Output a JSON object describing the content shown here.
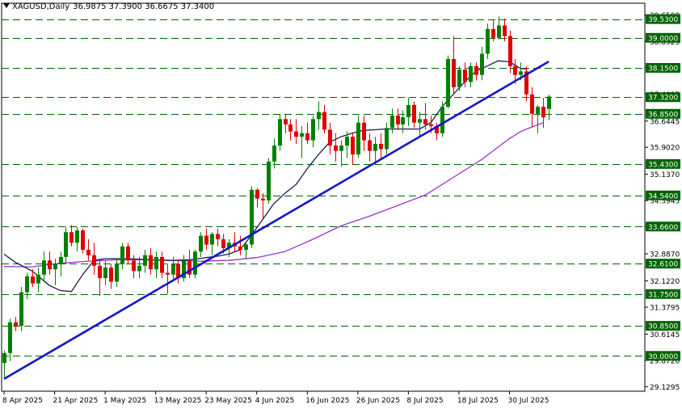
{
  "header": {
    "symbol": "XAGUSD,Daily",
    "ohlc": "36.9875 37.3900 36.6675 37.3400"
  },
  "chart_data": {
    "type": "candlestick",
    "ylim": [
      29.0,
      39.75
    ],
    "y_ticks": [
      "39.6500",
      "38.8925",
      "38.1550",
      "37.4025",
      "36.6445",
      "35.9020",
      "35.1370",
      "34.3945",
      "33.6520",
      "32.8870",
      "32.1220",
      "31.3795",
      "30.6145",
      "29.8720",
      "29.1295"
    ],
    "x_tick_labels": [
      {
        "label": "8 Apr 2025",
        "index": 0
      },
      {
        "label": "21 Apr 2025",
        "index": 9
      },
      {
        "label": "1 May 2025",
        "index": 18
      },
      {
        "label": "13 May 2025",
        "index": 27
      },
      {
        "label": "23 May 2025",
        "index": 36
      },
      {
        "label": "4 Jun 2025",
        "index": 45
      },
      {
        "label": "16 Jun 2025",
        "index": 54
      },
      {
        "label": "26 Jun 2025",
        "index": 63
      },
      {
        "label": "8 Jul 2025",
        "index": 72
      },
      {
        "label": "18 Jul 2025",
        "index": 81
      },
      {
        "label": "30 Jul 2025",
        "index": 90
      }
    ],
    "levels": [
      {
        "label": "39.5300",
        "value": 39.53
      },
      {
        "label": "39.0000",
        "value": 39.0
      },
      {
        "label": "38.1500",
        "value": 38.15
      },
      {
        "label": "37.3200",
        "value": 37.32
      },
      {
        "label": "36.8500",
        "value": 36.85
      },
      {
        "label": "35.4300",
        "value": 35.43
      },
      {
        "label": "34.5400",
        "value": 34.54
      },
      {
        "label": "33.6600",
        "value": 33.66
      },
      {
        "label": "32.6100",
        "value": 32.61
      },
      {
        "label": "31.7500",
        "value": 31.75
      },
      {
        "label": "30.8500",
        "value": 30.85
      },
      {
        "label": "30.0000",
        "value": 30.0
      }
    ],
    "trendline": {
      "start": {
        "index": 0,
        "value": 29.35
      },
      "end": {
        "index": 97,
        "value": 38.33
      }
    },
    "ma_fast": {
      "color": "#1a1a4e",
      "points": [
        [
          0,
          32.88
        ],
        [
          2,
          32.65
        ],
        [
          5,
          32.4
        ],
        [
          8,
          32.0
        ],
        [
          10,
          31.85
        ],
        [
          12,
          31.82
        ],
        [
          14,
          32.3
        ],
        [
          16,
          32.7
        ],
        [
          18,
          32.75
        ],
        [
          22,
          32.75
        ],
        [
          26,
          32.72
        ],
        [
          30,
          32.7
        ],
        [
          33,
          32.72
        ],
        [
          36,
          32.78
        ],
        [
          38,
          32.82
        ],
        [
          40,
          32.88
        ],
        [
          42,
          33.0
        ],
        [
          44,
          33.4
        ],
        [
          46,
          33.85
        ],
        [
          48,
          34.3
        ],
        [
          50,
          34.6
        ],
        [
          52,
          34.85
        ],
        [
          54,
          35.3
        ],
        [
          56,
          35.7
        ],
        [
          58,
          36.05
        ],
        [
          60,
          36.2
        ],
        [
          62,
          36.3
        ],
        [
          64,
          36.38
        ],
        [
          66,
          36.4
        ],
        [
          68,
          36.42
        ],
        [
          70,
          36.42
        ],
        [
          72,
          36.42
        ],
        [
          74,
          36.42
        ],
        [
          76,
          36.6
        ],
        [
          78,
          37.05
        ],
        [
          80,
          37.4
        ],
        [
          82,
          37.75
        ],
        [
          84,
          38.05
        ],
        [
          86,
          38.2
        ],
        [
          88,
          38.35
        ],
        [
          90,
          38.32
        ],
        [
          92,
          38.13
        ],
        [
          93,
          38.12
        ]
      ]
    },
    "ma_slow": {
      "color": "#9933cc",
      "points": [
        [
          0,
          32.53
        ],
        [
          5,
          32.52
        ],
        [
          10,
          32.62
        ],
        [
          15,
          32.68
        ],
        [
          20,
          32.72
        ],
        [
          25,
          32.72
        ],
        [
          30,
          32.7
        ],
        [
          35,
          32.68
        ],
        [
          40,
          32.7
        ],
        [
          45,
          32.78
        ],
        [
          50,
          32.95
        ],
        [
          55,
          33.3
        ],
        [
          60,
          33.68
        ],
        [
          65,
          33.95
        ],
        [
          70,
          34.25
        ],
        [
          75,
          34.55
        ],
        [
          80,
          35.05
        ],
        [
          85,
          35.55
        ],
        [
          90,
          36.15
        ],
        [
          92,
          36.35
        ],
        [
          94,
          36.48
        ],
        [
          96,
          36.6
        ]
      ]
    },
    "candles": [
      {
        "o": 29.8,
        "h": 30.15,
        "l": 29.35,
        "c": 30.08
      },
      {
        "o": 30.08,
        "h": 31.05,
        "l": 29.85,
        "c": 30.95
      },
      {
        "o": 30.95,
        "h": 31.1,
        "l": 30.7,
        "c": 30.85
      },
      {
        "o": 30.85,
        "h": 31.95,
        "l": 30.7,
        "c": 31.8
      },
      {
        "o": 31.8,
        "h": 32.35,
        "l": 31.6,
        "c": 32.25
      },
      {
        "o": 32.25,
        "h": 32.45,
        "l": 31.95,
        "c": 32.05
      },
      {
        "o": 32.05,
        "h": 32.5,
        "l": 31.8,
        "c": 32.3
      },
      {
        "o": 32.3,
        "h": 32.95,
        "l": 32.1,
        "c": 32.7
      },
      {
        "o": 32.7,
        "h": 32.95,
        "l": 32.3,
        "c": 32.45
      },
      {
        "o": 32.45,
        "h": 32.75,
        "l": 32.0,
        "c": 32.6
      },
      {
        "o": 32.6,
        "h": 32.95,
        "l": 32.25,
        "c": 32.8
      },
      {
        "o": 32.8,
        "h": 33.65,
        "l": 32.6,
        "c": 33.5
      },
      {
        "o": 33.5,
        "h": 33.7,
        "l": 33.1,
        "c": 33.2
      },
      {
        "o": 33.2,
        "h": 33.65,
        "l": 32.95,
        "c": 33.55
      },
      {
        "o": 33.55,
        "h": 33.6,
        "l": 32.9,
        "c": 33.0
      },
      {
        "o": 33.0,
        "h": 33.3,
        "l": 32.7,
        "c": 32.85
      },
      {
        "o": 32.85,
        "h": 33.2,
        "l": 32.3,
        "c": 32.55
      },
      {
        "o": 32.55,
        "h": 32.7,
        "l": 31.7,
        "c": 32.2
      },
      {
        "o": 32.2,
        "h": 32.7,
        "l": 32.0,
        "c": 32.5
      },
      {
        "o": 32.5,
        "h": 32.6,
        "l": 31.9,
        "c": 32.1
      },
      {
        "o": 32.1,
        "h": 32.75,
        "l": 31.95,
        "c": 32.6
      },
      {
        "o": 32.6,
        "h": 33.2,
        "l": 32.45,
        "c": 33.1
      },
      {
        "o": 33.1,
        "h": 33.2,
        "l": 32.6,
        "c": 32.7
      },
      {
        "o": 32.7,
        "h": 32.85,
        "l": 32.2,
        "c": 32.4
      },
      {
        "o": 32.4,
        "h": 32.8,
        "l": 32.2,
        "c": 32.55
      },
      {
        "o": 32.55,
        "h": 33.0,
        "l": 32.35,
        "c": 32.85
      },
      {
        "o": 32.85,
        "h": 33.05,
        "l": 32.3,
        "c": 32.45
      },
      {
        "o": 32.45,
        "h": 32.95,
        "l": 32.2,
        "c": 32.8
      },
      {
        "o": 32.8,
        "h": 32.95,
        "l": 32.2,
        "c": 32.35
      },
      {
        "o": 32.35,
        "h": 32.6,
        "l": 31.75,
        "c": 32.3
      },
      {
        "o": 32.3,
        "h": 32.8,
        "l": 32.1,
        "c": 32.6
      },
      {
        "o": 32.6,
        "h": 32.7,
        "l": 32.05,
        "c": 32.2
      },
      {
        "o": 32.2,
        "h": 32.85,
        "l": 32.1,
        "c": 32.7
      },
      {
        "o": 32.7,
        "h": 33.0,
        "l": 32.2,
        "c": 32.3
      },
      {
        "o": 32.3,
        "h": 33.0,
        "l": 32.2,
        "c": 32.95
      },
      {
        "o": 32.95,
        "h": 33.5,
        "l": 32.8,
        "c": 33.4
      },
      {
        "o": 33.4,
        "h": 33.6,
        "l": 33.0,
        "c": 33.15
      },
      {
        "o": 33.15,
        "h": 33.5,
        "l": 32.85,
        "c": 33.45
      },
      {
        "o": 33.45,
        "h": 33.6,
        "l": 33.1,
        "c": 33.3
      },
      {
        "o": 33.3,
        "h": 33.45,
        "l": 32.9,
        "c": 33.05
      },
      {
        "o": 33.05,
        "h": 33.3,
        "l": 32.8,
        "c": 33.2
      },
      {
        "o": 33.2,
        "h": 33.5,
        "l": 32.95,
        "c": 33.1
      },
      {
        "o": 33.1,
        "h": 33.4,
        "l": 32.85,
        "c": 33.0
      },
      {
        "o": 33.0,
        "h": 33.25,
        "l": 32.75,
        "c": 33.15
      },
      {
        "o": 33.15,
        "h": 34.8,
        "l": 33.05,
        "c": 34.7
      },
      {
        "o": 34.7,
        "h": 34.75,
        "l": 34.2,
        "c": 34.45
      },
      {
        "o": 34.45,
        "h": 34.6,
        "l": 33.9,
        "c": 34.4
      },
      {
        "o": 34.4,
        "h": 35.6,
        "l": 34.3,
        "c": 35.5
      },
      {
        "o": 35.5,
        "h": 36.15,
        "l": 35.3,
        "c": 35.95
      },
      {
        "o": 35.95,
        "h": 36.85,
        "l": 35.8,
        "c": 36.7
      },
      {
        "o": 36.7,
        "h": 36.85,
        "l": 36.3,
        "c": 36.55
      },
      {
        "o": 36.55,
        "h": 36.7,
        "l": 36.1,
        "c": 36.35
      },
      {
        "o": 36.35,
        "h": 36.7,
        "l": 36.0,
        "c": 36.2
      },
      {
        "o": 36.2,
        "h": 36.5,
        "l": 35.6,
        "c": 36.3
      },
      {
        "o": 36.3,
        "h": 36.6,
        "l": 36.0,
        "c": 36.1
      },
      {
        "o": 36.1,
        "h": 36.8,
        "l": 35.9,
        "c": 36.7
      },
      {
        "o": 36.7,
        "h": 37.2,
        "l": 36.4,
        "c": 36.9
      },
      {
        "o": 36.9,
        "h": 37.1,
        "l": 36.3,
        "c": 36.4
      },
      {
        "o": 36.4,
        "h": 36.6,
        "l": 35.7,
        "c": 35.95
      },
      {
        "o": 35.95,
        "h": 36.3,
        "l": 35.5,
        "c": 35.8
      },
      {
        "o": 35.8,
        "h": 36.1,
        "l": 35.35,
        "c": 35.95
      },
      {
        "o": 35.95,
        "h": 36.35,
        "l": 35.6,
        "c": 36.2
      },
      {
        "o": 36.2,
        "h": 36.3,
        "l": 35.4,
        "c": 35.7
      },
      {
        "o": 35.7,
        "h": 36.8,
        "l": 35.6,
        "c": 36.6
      },
      {
        "o": 36.6,
        "h": 36.8,
        "l": 35.8,
        "c": 36.1
      },
      {
        "o": 36.1,
        "h": 36.3,
        "l": 35.5,
        "c": 35.8
      },
      {
        "o": 35.8,
        "h": 36.2,
        "l": 35.4,
        "c": 36.0
      },
      {
        "o": 36.0,
        "h": 36.3,
        "l": 35.6,
        "c": 35.85
      },
      {
        "o": 35.85,
        "h": 36.6,
        "l": 35.7,
        "c": 36.45
      },
      {
        "o": 36.45,
        "h": 37.0,
        "l": 36.3,
        "c": 36.8
      },
      {
        "o": 36.8,
        "h": 37.0,
        "l": 36.4,
        "c": 36.55
      },
      {
        "o": 36.55,
        "h": 36.95,
        "l": 36.3,
        "c": 36.75
      },
      {
        "o": 36.75,
        "h": 37.3,
        "l": 36.5,
        "c": 37.1
      },
      {
        "o": 37.1,
        "h": 37.2,
        "l": 36.45,
        "c": 36.6
      },
      {
        "o": 36.6,
        "h": 36.9,
        "l": 36.2,
        "c": 36.7
      },
      {
        "o": 36.7,
        "h": 37.15,
        "l": 36.4,
        "c": 36.55
      },
      {
        "o": 36.55,
        "h": 36.8,
        "l": 36.3,
        "c": 36.5
      },
      {
        "o": 36.5,
        "h": 36.6,
        "l": 36.1,
        "c": 36.3
      },
      {
        "o": 36.3,
        "h": 37.2,
        "l": 36.2,
        "c": 37.05
      },
      {
        "o": 37.05,
        "h": 38.5,
        "l": 37.0,
        "c": 38.4
      },
      {
        "o": 38.4,
        "h": 39.05,
        "l": 37.4,
        "c": 37.6
      },
      {
        "o": 37.6,
        "h": 38.2,
        "l": 37.5,
        "c": 38.1
      },
      {
        "o": 38.1,
        "h": 38.3,
        "l": 37.6,
        "c": 37.75
      },
      {
        "o": 37.75,
        "h": 38.3,
        "l": 37.6,
        "c": 38.2
      },
      {
        "o": 38.2,
        "h": 38.3,
        "l": 37.8,
        "c": 37.95
      },
      {
        "o": 37.95,
        "h": 38.75,
        "l": 37.8,
        "c": 38.55
      },
      {
        "o": 38.55,
        "h": 39.4,
        "l": 38.4,
        "c": 39.25
      },
      {
        "o": 39.25,
        "h": 39.5,
        "l": 38.9,
        "c": 39.0
      },
      {
        "o": 39.0,
        "h": 39.6,
        "l": 38.95,
        "c": 39.35
      },
      {
        "o": 39.35,
        "h": 39.55,
        "l": 38.9,
        "c": 39.05
      },
      {
        "o": 39.05,
        "h": 39.2,
        "l": 38.0,
        "c": 38.2
      },
      {
        "o": 38.2,
        "h": 38.4,
        "l": 37.7,
        "c": 37.95
      },
      {
        "o": 37.95,
        "h": 38.3,
        "l": 37.8,
        "c": 38.05
      },
      {
        "o": 38.05,
        "h": 38.2,
        "l": 37.2,
        "c": 37.4
      },
      {
        "o": 37.4,
        "h": 37.6,
        "l": 36.5,
        "c": 36.85
      },
      {
        "o": 36.85,
        "h": 37.1,
        "l": 36.3,
        "c": 37.05
      },
      {
        "o": 37.05,
        "h": 37.3,
        "l": 36.45,
        "c": 36.75
      },
      {
        "o": 36.9875,
        "h": 37.39,
        "l": 36.6675,
        "c": 37.34
      }
    ]
  }
}
